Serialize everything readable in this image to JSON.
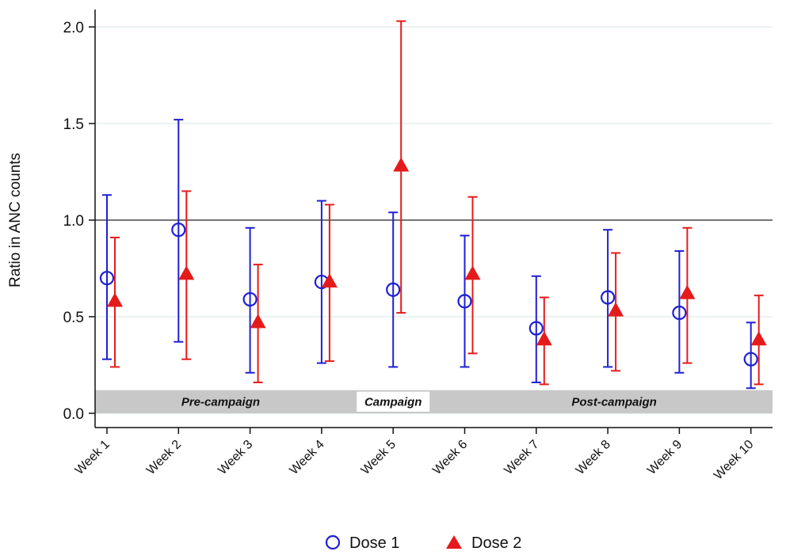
{
  "chart_data": {
    "type": "scatter",
    "ylabel": "Ratio in ANC counts",
    "xlabel": "",
    "categories": [
      "Week 1",
      "Week 2",
      "Week 3",
      "Week 4",
      "Week 5",
      "Week 6",
      "Week 7",
      "Week 8",
      "Week 9",
      "Week 10"
    ],
    "ylim": [
      0,
      2.0
    ],
    "yticks": [
      "0.0",
      "0.5",
      "1.0",
      "1.5",
      "2.0"
    ],
    "reference_line": 1.0,
    "grid": true,
    "series": [
      {
        "name": "Dose 1",
        "marker": "hollow-circle",
        "color": "#1f1fd6",
        "values": [
          0.7,
          0.95,
          0.59,
          0.68,
          0.64,
          0.58,
          0.44,
          0.6,
          0.52,
          0.28
        ],
        "lower": [
          0.28,
          0.37,
          0.21,
          0.26,
          0.24,
          0.24,
          0.16,
          0.24,
          0.21,
          0.13
        ],
        "upper": [
          1.13,
          1.52,
          0.96,
          1.1,
          1.04,
          0.92,
          0.71,
          0.95,
          0.84,
          0.47
        ]
      },
      {
        "name": "Dose 2",
        "marker": "filled-triangle",
        "color": "#e51b1b",
        "values": [
          0.58,
          0.72,
          0.47,
          0.68,
          1.28,
          0.72,
          0.38,
          0.53,
          0.62,
          0.38
        ],
        "lower": [
          0.24,
          0.28,
          0.16,
          0.27,
          0.52,
          0.31,
          0.15,
          0.22,
          0.26,
          0.15
        ],
        "upper": [
          0.91,
          1.15,
          0.77,
          1.08,
          2.03,
          1.12,
          0.6,
          0.83,
          0.96,
          0.61
        ]
      }
    ],
    "periods": [
      {
        "label": "Pre-campaign",
        "start": 1,
        "end": 4,
        "highlight": false
      },
      {
        "label": "Campaign",
        "start": 5,
        "end": 5,
        "highlight": true
      },
      {
        "label": "Post-campaign",
        "start": 6,
        "end": 10,
        "highlight": false
      }
    ],
    "period_band": {
      "from": 0,
      "to": 0.12,
      "color": "#c8c8c8"
    },
    "legend": {
      "position": "bottom"
    }
  }
}
